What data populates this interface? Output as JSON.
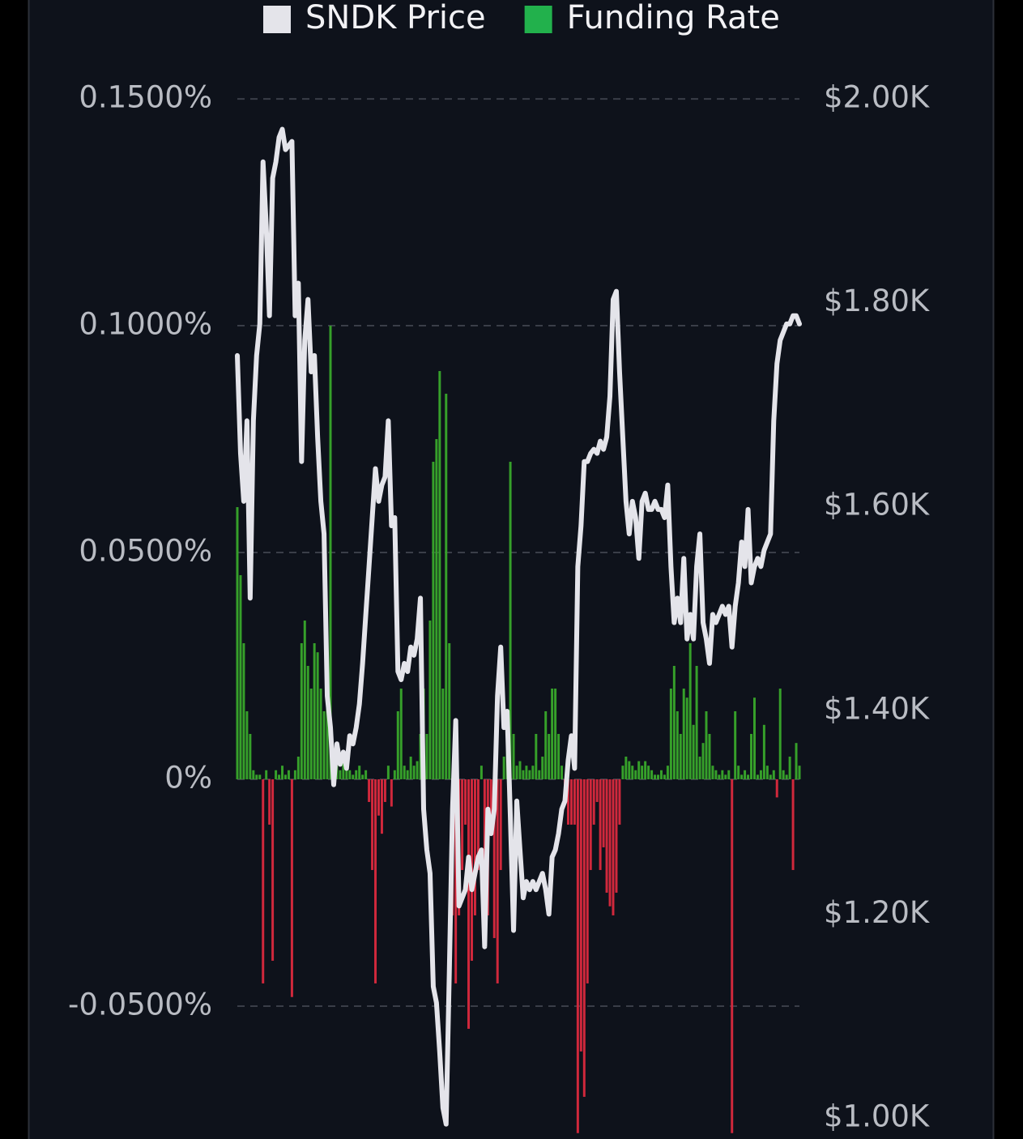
{
  "chart_data": {
    "type": "combo",
    "legend": "top",
    "grid": true,
    "categories": [
      null,
      null,
      null,
      null,
      null,
      null,
      null,
      null,
      null,
      null,
      null,
      null,
      null,
      null,
      null,
      null,
      null,
      null,
      null,
      null,
      null,
      null,
      null,
      null,
      null,
      null,
      null,
      null,
      null,
      null,
      null,
      null,
      null,
      null,
      null,
      null,
      null,
      null,
      null,
      null,
      null,
      null,
      null,
      null,
      null,
      null,
      null,
      null,
      null,
      null,
      null,
      null,
      null,
      null,
      null,
      null,
      null,
      null,
      null,
      null,
      null,
      null,
      null,
      null,
      null,
      null,
      null,
      null,
      null,
      null,
      null,
      null,
      null,
      null,
      null,
      null,
      null,
      null,
      null,
      null,
      null,
      null,
      null,
      null,
      null,
      null,
      null,
      null,
      null,
      null,
      null,
      null,
      null,
      null,
      null,
      null,
      null,
      null,
      null,
      null,
      null,
      null,
      null,
      null,
      null,
      null,
      null,
      null,
      null,
      null,
      null,
      null,
      null,
      null,
      null,
      null,
      null,
      null,
      null,
      null,
      null,
      null,
      null,
      null,
      null,
      null,
      null,
      null,
      null,
      null,
      null,
      null,
      null,
      null,
      null,
      null,
      null,
      null,
      null,
      null,
      null,
      null,
      null,
      null,
      null,
      null,
      null,
      null,
      null,
      null,
      null,
      null,
      null,
      null,
      null,
      null,
      null,
      null,
      null,
      null,
      null,
      null,
      null,
      null,
      null,
      null,
      null,
      null,
      null,
      null,
      null,
      null,
      null,
      null,
      null,
      null
    ],
    "ylim": [
      -0.0793,
      0.1718
    ],
    "yticks": [
      {
        "value": 0.15,
        "label": "0.1500%"
      },
      {
        "value": 0.1,
        "label": "0.1000%"
      },
      {
        "value": 0.05,
        "label": "0.0500%"
      },
      {
        "value": 0,
        "label": "0%"
      },
      {
        "value": -0.05,
        "label": "-0.0500%"
      }
    ],
    "y2lim": [
      979.4,
      2096.8
    ],
    "y2ticks": [
      {
        "value": 2000,
        "label": "$2.00K"
      },
      {
        "value": 1800,
        "label": "$1.80K"
      },
      {
        "value": 1600,
        "label": "$1.60K"
      },
      {
        "value": 1400,
        "label": "$1.40K"
      },
      {
        "value": 1200,
        "label": "$1.20K"
      },
      {
        "value": 1000,
        "label": "$1.00K"
      }
    ],
    "series": [
      {
        "name": "SNDK Price",
        "type": "line",
        "axis": "y2",
        "color": "#e4e4ea",
        "values": [
          1748,
          1652,
          1605,
          1684,
          1510,
          1684,
          1748,
          1779,
          1938,
          1875,
          1787,
          1922,
          1938,
          1962,
          1970,
          1950,
          1954,
          1958,
          1787,
          1819,
          1644,
          1763,
          1803,
          1732,
          1748,
          1668,
          1605,
          1573,
          1414,
          1383,
          1327,
          1367,
          1347,
          1359,
          1343,
          1375,
          1367,
          1383,
          1406,
          1446,
          1494,
          1541,
          1589,
          1637,
          1605,
          1621,
          1629,
          1684,
          1581,
          1589,
          1438,
          1430,
          1446,
          1438,
          1462,
          1454,
          1470,
          1510,
          1303,
          1263,
          1240,
          1129,
          1113,
          1065,
          1010,
          994,
          1144,
          1303,
          1390,
          1208,
          1216,
          1224,
          1256,
          1224,
          1240,
          1256,
          1263,
          1168,
          1303,
          1279,
          1303,
          1414,
          1462,
          1383,
          1399,
          1295,
          1184,
          1311,
          1263,
          1216,
          1232,
          1224,
          1232,
          1224,
          1232,
          1240,
          1224,
          1200,
          1256,
          1263,
          1279,
          1303,
          1311,
          1351,
          1375,
          1343,
          1541,
          1581,
          1644,
          1644,
          1652,
          1656,
          1652,
          1664,
          1656,
          1668,
          1708,
          1803,
          1811,
          1732,
          1668,
          1605,
          1573,
          1605,
          1589,
          1549,
          1605,
          1613,
          1597,
          1597,
          1605,
          1597,
          1597,
          1589,
          1621,
          1541,
          1486,
          1510,
          1486,
          1549,
          1470,
          1494,
          1470,
          1541,
          1573,
          1486,
          1470,
          1446,
          1494,
          1486,
          1494,
          1502,
          1494,
          1502,
          1462,
          1502,
          1525,
          1565,
          1541,
          1597,
          1525,
          1541,
          1549,
          1541,
          1557,
          1565,
          1573,
          1684,
          1740,
          1763,
          1771,
          1779,
          1779,
          1787,
          1787,
          1779
        ]
      },
      {
        "name": "Funding Rate",
        "type": "bar",
        "axis": "y",
        "color": "#22b14c",
        "bar_color": "#36a02a",
        "negative_color": "#d0283c",
        "values": [
          0.06,
          0.045,
          0.03,
          0.015,
          0.01,
          0.002,
          0.001,
          0.001,
          -0.045,
          0.002,
          -0.01,
          -0.04,
          0.002,
          0.001,
          0.003,
          0.001,
          0.002,
          -0.048,
          0.002,
          0.005,
          0.03,
          0.035,
          0.025,
          0.02,
          0.03,
          0.028,
          0.02,
          0.015,
          0.03,
          0.1,
          0.005,
          0.003,
          0.002,
          0.004,
          0.003,
          0.002,
          0.001,
          0.002,
          0.003,
          0.001,
          0.002,
          -0.005,
          -0.02,
          -0.045,
          -0.008,
          -0.012,
          -0.005,
          0.003,
          -0.006,
          0.002,
          0.015,
          0.02,
          0.003,
          0.002,
          0.005,
          0.003,
          0.004,
          0.01,
          0.02,
          0.01,
          0.035,
          0.07,
          0.075,
          0.09,
          0.02,
          0.085,
          0.03,
          -0.03,
          -0.045,
          -0.03,
          -0.02,
          -0.01,
          -0.055,
          -0.04,
          -0.03,
          -0.02,
          0.003,
          -0.035,
          -0.03,
          -0.01,
          -0.035,
          -0.045,
          -0.02,
          0.005,
          0.015,
          0.07,
          0.01,
          0.003,
          0.004,
          0.002,
          0.003,
          0.002,
          0.003,
          0.01,
          0.002,
          0.005,
          0.015,
          0.01,
          0.02,
          0.02,
          0.01,
          0.003,
          -0.005,
          -0.01,
          -0.01,
          -0.01,
          -0.078,
          -0.06,
          -0.07,
          -0.045,
          -0.02,
          -0.01,
          -0.005,
          -0.02,
          -0.015,
          -0.025,
          -0.028,
          -0.03,
          -0.025,
          -0.01,
          0.003,
          0.005,
          0.004,
          0.003,
          0.002,
          0.004,
          0.003,
          0.004,
          0.003,
          0.002,
          0.001,
          0.001,
          0.002,
          0.001,
          0.003,
          0.02,
          0.025,
          0.015,
          0.01,
          0.02,
          0.018,
          0.03,
          0.012,
          0.025,
          0.005,
          0.008,
          0.015,
          0.01,
          0.003,
          0.002,
          0.001,
          0.002,
          0.001,
          0.002,
          -0.078,
          0.015,
          0.003,
          0.001,
          0.002,
          0.001,
          0.01,
          0.018,
          0.001,
          0.002,
          0.012,
          0.003,
          0.001,
          0.002,
          -0.004,
          0.02,
          0.002,
          0.001,
          0.005,
          -0.02,
          0.008,
          0.003
        ]
      }
    ]
  }
}
